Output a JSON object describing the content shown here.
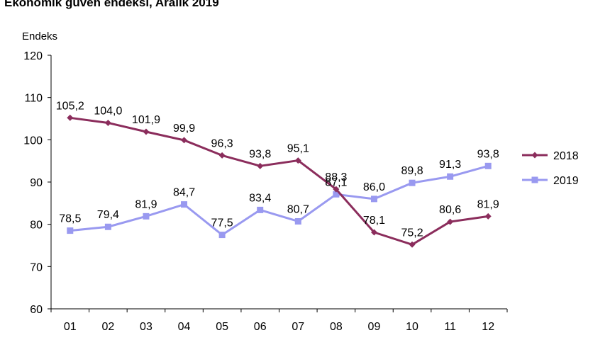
{
  "chart_data": {
    "type": "line",
    "title": "Ekonomik güven endeksi, Aralık 2019",
    "ylabel": "Endeks",
    "xlabel": "",
    "categories": [
      "01",
      "02",
      "03",
      "04",
      "05",
      "06",
      "07",
      "08",
      "09",
      "10",
      "11",
      "12"
    ],
    "ylim": [
      60,
      120
    ],
    "yticks": [
      "60",
      "70",
      "80",
      "90",
      "100",
      "110",
      "120"
    ],
    "grid": false,
    "legend": "right",
    "series": [
      {
        "name": "2018",
        "color": "#8b2d5c",
        "marker": "diamond",
        "values": [
          105.2,
          104.0,
          101.9,
          99.9,
          96.3,
          93.8,
          95.1,
          88.3,
          78.1,
          75.2,
          80.6,
          81.9
        ],
        "labels": [
          "105,2",
          "104,0",
          "101,9",
          "99,9",
          "96,3",
          "93,8",
          "95,1",
          "88,3",
          "78,1",
          "75,2",
          "80,6",
          "81,9"
        ]
      },
      {
        "name": "2019",
        "color": "#9999f0",
        "marker": "square",
        "values": [
          78.5,
          79.4,
          81.9,
          84.7,
          77.5,
          83.4,
          80.7,
          87.1,
          86.0,
          89.8,
          91.3,
          93.8
        ],
        "labels": [
          "78,5",
          "79,4",
          "81,9",
          "84,7",
          "77,5",
          "83,4",
          "80,7",
          "87,1",
          "86,0",
          "89,8",
          "91,3",
          "93,8"
        ]
      }
    ]
  }
}
